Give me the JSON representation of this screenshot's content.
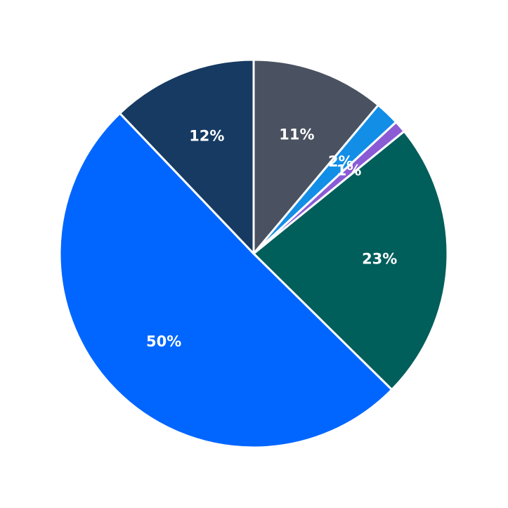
{
  "chart_data": {
    "type": "pie",
    "values": [
      11,
      2,
      1,
      23,
      50,
      12
    ],
    "value_labels": [
      "11%",
      "2%",
      "1%",
      "23%",
      "50%",
      "12%"
    ],
    "colors": [
      "#4a5261",
      "#128ee6",
      "#8a5bd5",
      "#005e5b",
      "#0066ff",
      "#163a62"
    ]
  }
}
